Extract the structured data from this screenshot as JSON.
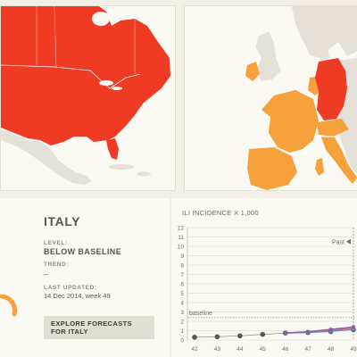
{
  "maps": {
    "north_america": {
      "highlight_color": "#ef3b24",
      "base_color": "#e6e1d8"
    },
    "europe": {
      "high_color": "#ef3b24",
      "moderate_color": "#f6a13c",
      "base_color": "#e6e1d8"
    }
  },
  "info": {
    "country": "ITALY",
    "level_label": "LEVEL:",
    "level_value": "BELOW BASELINE",
    "trend_label": "TREND:",
    "trend_value": "–",
    "updated_label": "LAST UPDATED:",
    "updated_value": "14 Dec 2014, week 49",
    "explore_button_line1": "EXPLORE FORECASTS",
    "explore_button_line2": "FOR ITALY",
    "gauge_color": "#f6a13c"
  },
  "chart_data": {
    "type": "line",
    "title": "ILI INCIDENCE X 1,000",
    "x": [
      42,
      43,
      44,
      45,
      46,
      47,
      48,
      49
    ],
    "x_ticks": [
      "42",
      "43",
      "44",
      "45",
      "46",
      "47",
      "48",
      "49"
    ],
    "ylim": [
      0,
      12
    ],
    "y_ticks": [
      "0",
      "1",
      "2",
      "3",
      "4",
      "5",
      "6",
      "7",
      "8",
      "9",
      "10",
      "11",
      "12"
    ],
    "baseline_label": "baseline",
    "baseline_value": 2.4,
    "past_label": "Past",
    "series": [
      {
        "color": "#555555",
        "values": [
          0.3,
          0.35,
          0.45,
          0.6,
          0.75,
          0.8,
          0.9,
          1.1
        ]
      },
      {
        "color": "#cc4a52",
        "values": [
          null,
          null,
          null,
          null,
          0.75,
          0.85,
          1.05,
          1.3
        ]
      },
      {
        "color": "#5c88c4",
        "values": [
          null,
          null,
          null,
          null,
          0.75,
          0.8,
          0.95,
          1.15
        ]
      },
      {
        "color": "#8a5aa6",
        "values": [
          null,
          null,
          null,
          null,
          0.75,
          0.9,
          1.15,
          1.4
        ]
      }
    ]
  }
}
